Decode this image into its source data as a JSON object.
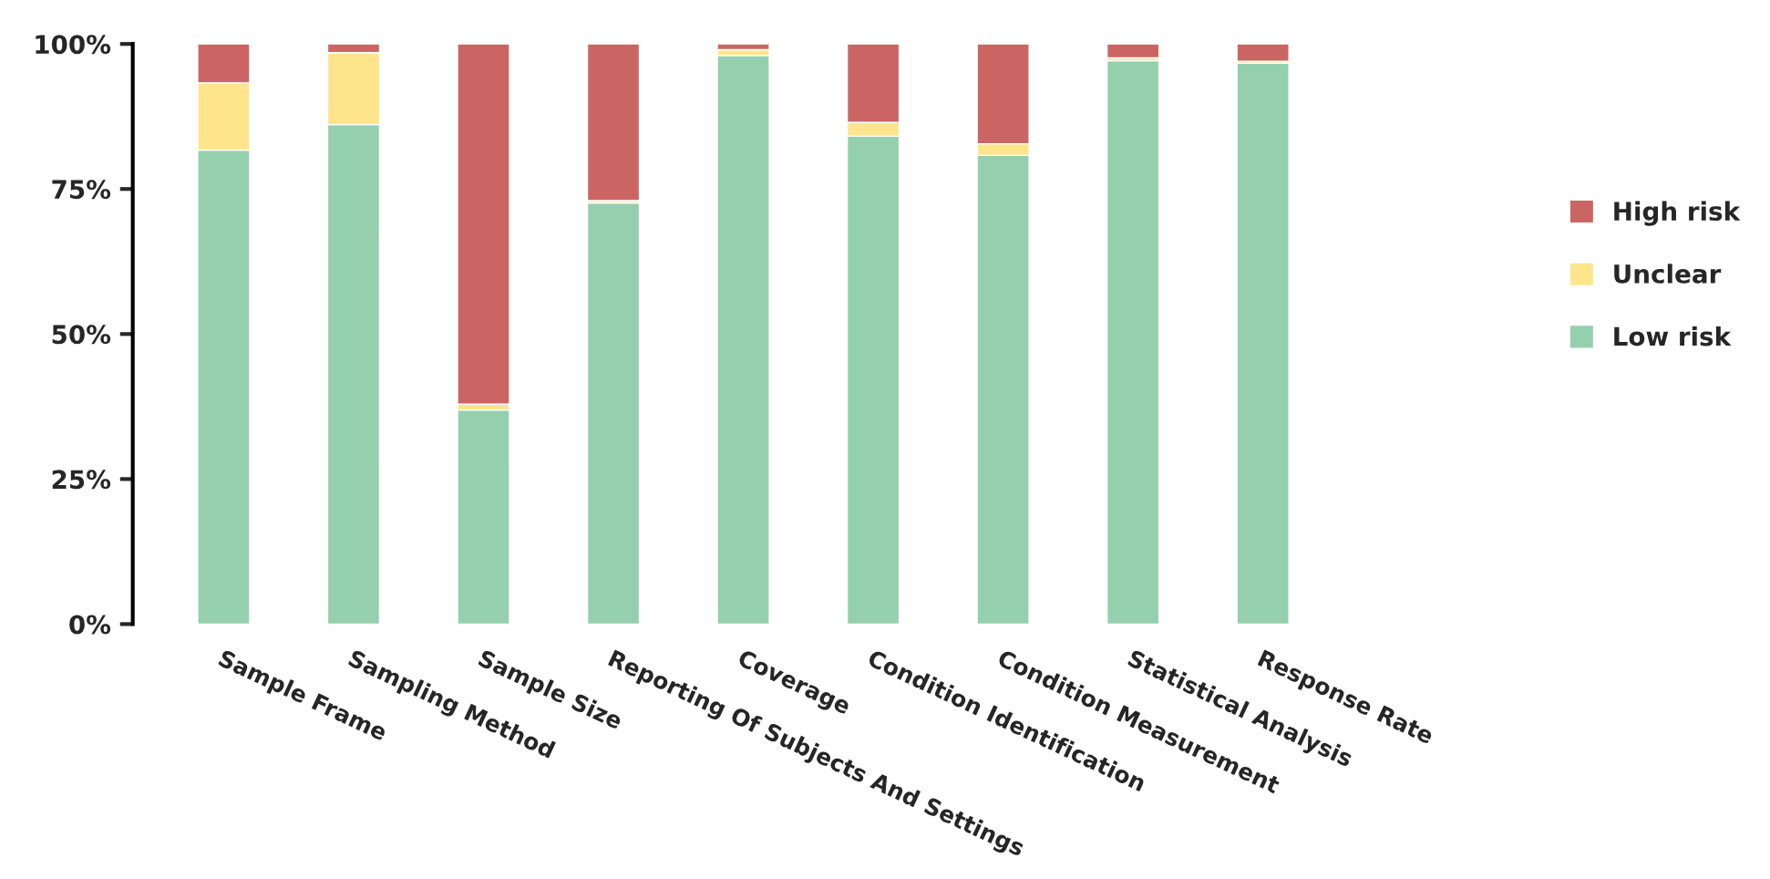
{
  "chart_data": {
    "type": "bar",
    "stacked": true,
    "categories": [
      "Sample Frame",
      "Sampling Method",
      "Sample Size",
      "Reporting Of Subjects And Settings",
      "Coverage",
      "Condition Identification",
      "Condition Measurement",
      "Statistical Analysis",
      "Response Rate"
    ],
    "series": [
      {
        "name": "Low risk",
        "color": "#95d0ae",
        "values": [
          81.7,
          86.1,
          36.9,
          72.6,
          98.0,
          84.1,
          80.8,
          97.1,
          96.7
        ]
      },
      {
        "name": "Unclear",
        "color": "#fee58c",
        "values": [
          11.6,
          12.4,
          1.0,
          0.4,
          1.0,
          2.4,
          2.0,
          0.5,
          0.3
        ]
      },
      {
        "name": "High risk",
        "color": "#cb6564",
        "values": [
          6.7,
          1.5,
          62.1,
          27.0,
          1.0,
          13.5,
          17.2,
          2.4,
          3.0
        ]
      }
    ],
    "ylim": [
      0,
      100
    ],
    "yticks": [
      {
        "value": 0,
        "label": "0%"
      },
      {
        "value": 25,
        "label": "25%"
      },
      {
        "value": 50,
        "label": "50%"
      },
      {
        "value": 75,
        "label": "75%"
      },
      {
        "value": 100,
        "label": "100%"
      }
    ],
    "grid": false,
    "legend": "right"
  }
}
